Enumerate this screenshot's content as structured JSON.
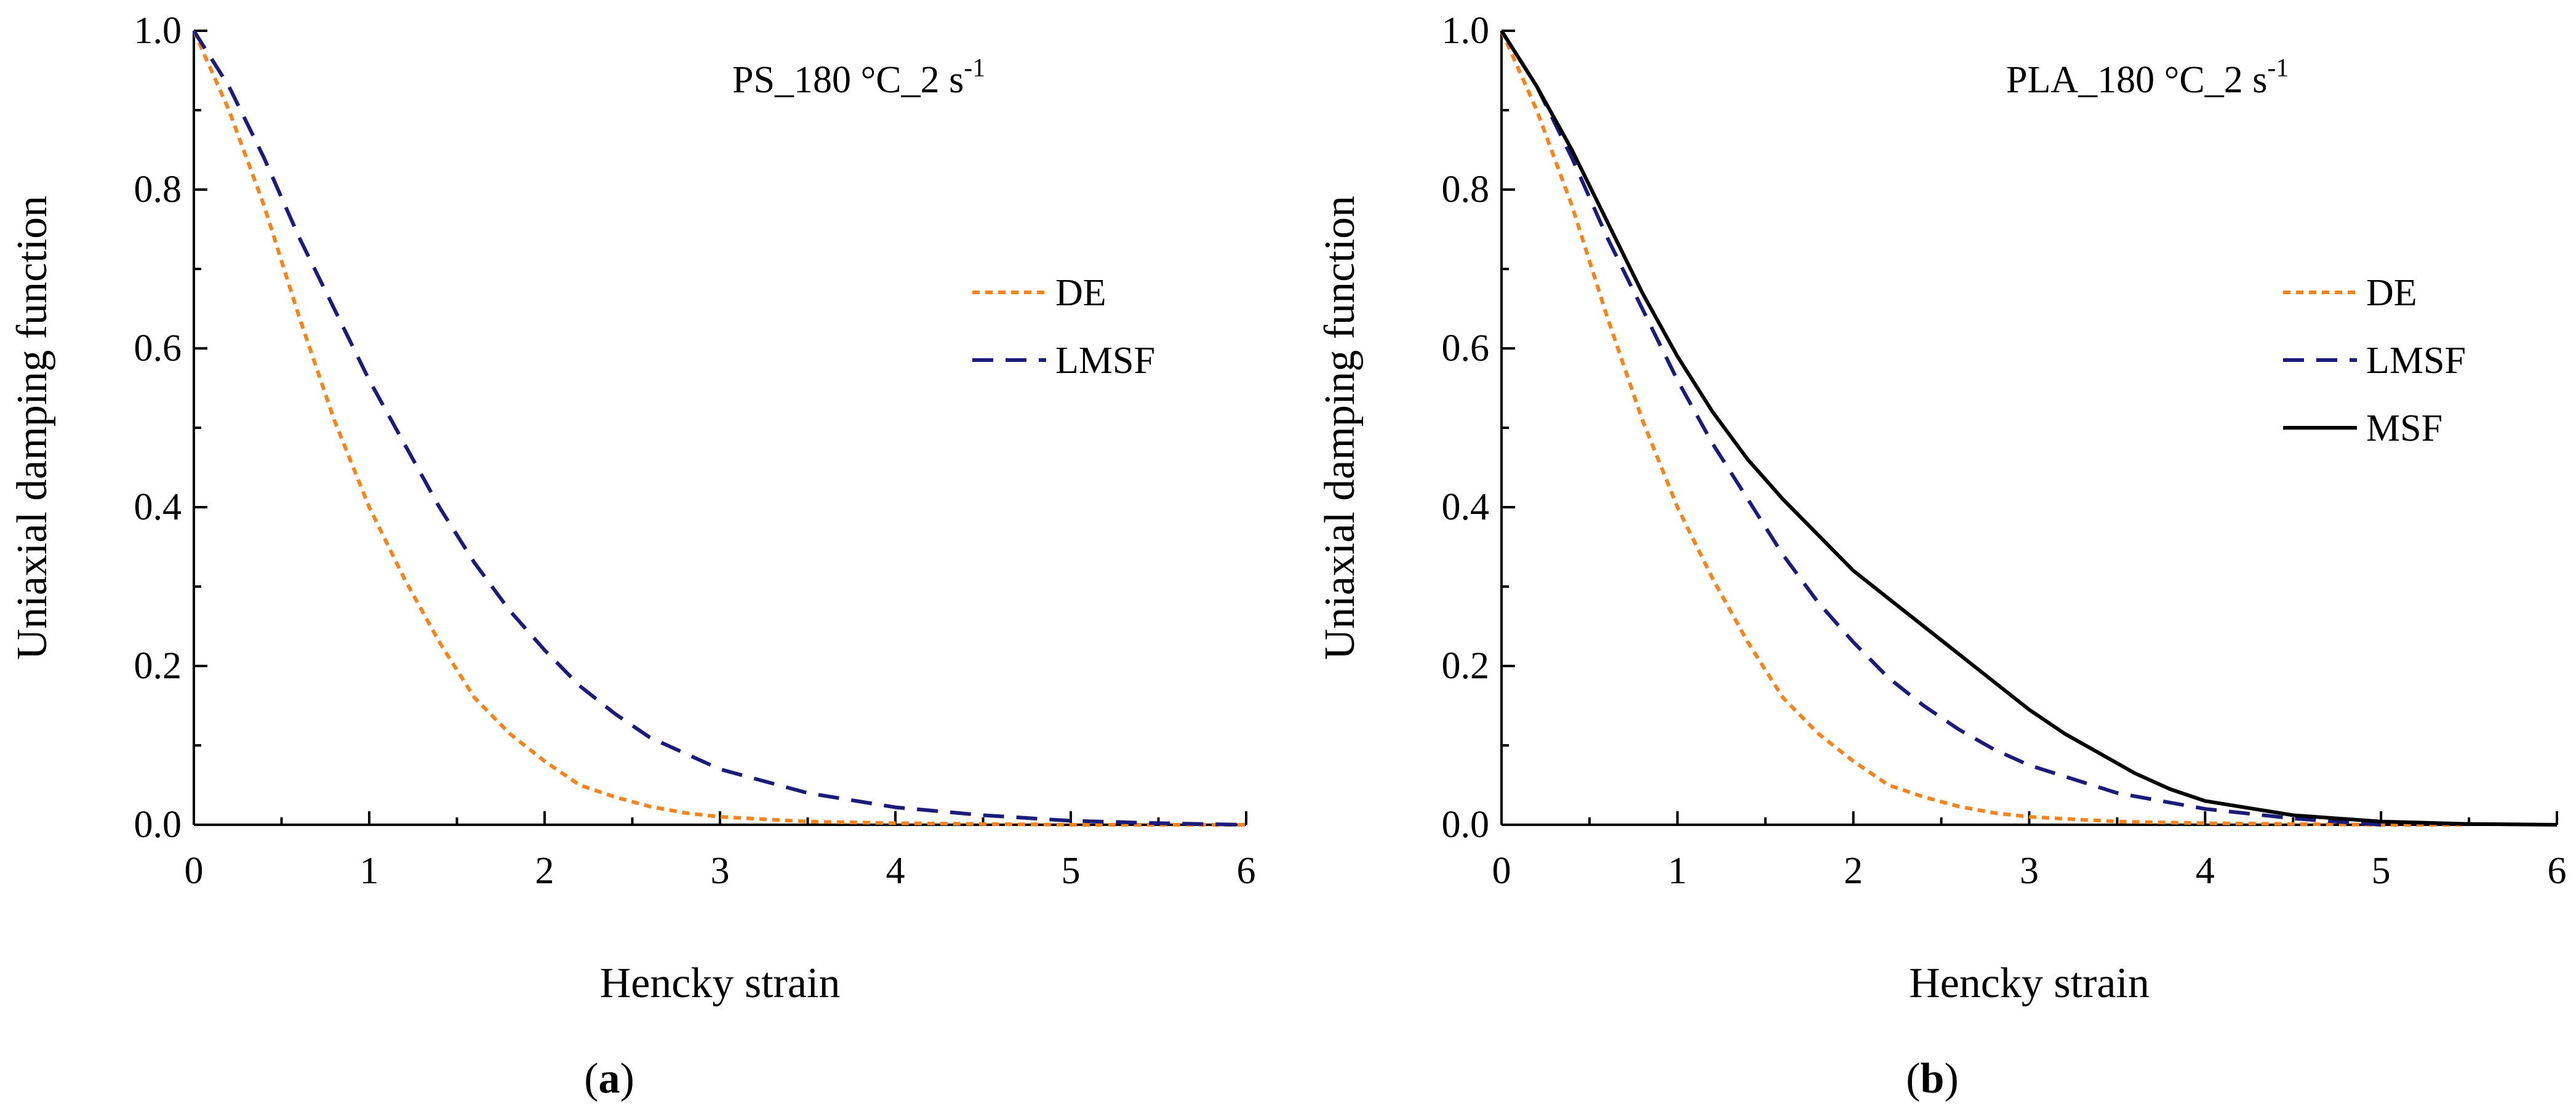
{
  "chart_data": [
    {
      "type": "line",
      "panel_label": "a",
      "annotation": {
        "main": "PS_180 °C_2 s",
        "superscript": "-1"
      },
      "xlabel": "Hencky strain",
      "ylabel": "Uniaxial damping function",
      "xlim": [
        0,
        6
      ],
      "ylim": [
        0,
        1
      ],
      "xticks": [
        "0",
        "1",
        "2",
        "3",
        "4",
        "5",
        "6"
      ],
      "yticks": [
        "0.0",
        "0.2",
        "0.4",
        "0.6",
        "0.8",
        "1.0"
      ],
      "legend_position": "right",
      "series": [
        {
          "name": "DE",
          "color": "#F5841F",
          "style": "dotted",
          "x": [
            0,
            0.2,
            0.4,
            0.6,
            0.8,
            1.0,
            1.2,
            1.4,
            1.6,
            1.8,
            2.0,
            2.2,
            2.4,
            2.6,
            2.8,
            3.0,
            3.5,
            4.0,
            4.5,
            5.0,
            6.0
          ],
          "y": [
            1.0,
            0.9,
            0.78,
            0.64,
            0.51,
            0.4,
            0.31,
            0.23,
            0.16,
            0.115,
            0.08,
            0.05,
            0.035,
            0.023,
            0.015,
            0.01,
            0.004,
            0.002,
            0.001,
            0.0,
            0.0
          ]
        },
        {
          "name": "LMSF",
          "color": "#1B1B7A",
          "style": "dashed",
          "x": [
            0,
            0.2,
            0.4,
            0.6,
            0.8,
            1.0,
            1.2,
            1.4,
            1.6,
            1.8,
            2.0,
            2.2,
            2.4,
            2.6,
            2.8,
            3.0,
            3.5,
            4.0,
            4.5,
            5.0,
            5.5,
            6.0
          ],
          "y": [
            1.0,
            0.93,
            0.84,
            0.74,
            0.65,
            0.56,
            0.48,
            0.4,
            0.33,
            0.27,
            0.22,
            0.175,
            0.14,
            0.11,
            0.09,
            0.07,
            0.04,
            0.022,
            0.012,
            0.005,
            0.002,
            0.0
          ]
        }
      ]
    },
    {
      "type": "line",
      "panel_label": "b",
      "annotation": {
        "main": "PLA_180 °C_2 s",
        "superscript": "-1"
      },
      "xlabel": "Hencky strain",
      "ylabel": "Uniaxial damping function",
      "xlim": [
        0,
        6
      ],
      "ylim": [
        0,
        1
      ],
      "xticks": [
        "0",
        "1",
        "2",
        "3",
        "4",
        "5",
        "6"
      ],
      "yticks": [
        "0.0",
        "0.2",
        "0.4",
        "0.6",
        "0.8",
        "1.0"
      ],
      "legend_position": "right",
      "series": [
        {
          "name": "DE",
          "color": "#F5841F",
          "style": "dotted",
          "x": [
            0,
            0.2,
            0.4,
            0.6,
            0.8,
            1.0,
            1.2,
            1.4,
            1.6,
            1.8,
            2.0,
            2.2,
            2.4,
            2.6,
            2.8,
            3.0,
            3.5,
            4.0,
            4.5,
            5.0,
            5.5
          ],
          "y": [
            1.0,
            0.9,
            0.78,
            0.64,
            0.51,
            0.4,
            0.31,
            0.23,
            0.16,
            0.115,
            0.08,
            0.05,
            0.035,
            0.023,
            0.015,
            0.01,
            0.004,
            0.002,
            0.001,
            0.0,
            0.0
          ]
        },
        {
          "name": "LMSF",
          "color": "#1B1B7A",
          "style": "dashed",
          "x": [
            0,
            0.2,
            0.4,
            0.6,
            0.8,
            1.0,
            1.2,
            1.4,
            1.6,
            1.8,
            2.0,
            2.2,
            2.4,
            2.6,
            2.8,
            3.0,
            3.5,
            4.0,
            4.5,
            5.0
          ],
          "y": [
            1.0,
            0.93,
            0.84,
            0.74,
            0.65,
            0.56,
            0.48,
            0.41,
            0.34,
            0.28,
            0.23,
            0.185,
            0.15,
            0.12,
            0.095,
            0.075,
            0.04,
            0.02,
            0.008,
            0.0
          ]
        },
        {
          "name": "MSF",
          "color": "#000000",
          "style": "solid",
          "x": [
            0,
            0.2,
            0.4,
            0.6,
            0.8,
            1.0,
            1.2,
            1.4,
            1.6,
            1.8,
            2.0,
            2.2,
            2.4,
            2.6,
            2.8,
            3.0,
            3.2,
            3.4,
            3.6,
            3.8,
            4.0,
            4.5,
            5.0,
            5.5,
            6.0
          ],
          "y": [
            1.0,
            0.93,
            0.85,
            0.76,
            0.67,
            0.59,
            0.52,
            0.46,
            0.41,
            0.365,
            0.32,
            0.285,
            0.25,
            0.215,
            0.18,
            0.145,
            0.115,
            0.09,
            0.065,
            0.045,
            0.03,
            0.012,
            0.004,
            0.001,
            0.0
          ]
        }
      ]
    }
  ]
}
